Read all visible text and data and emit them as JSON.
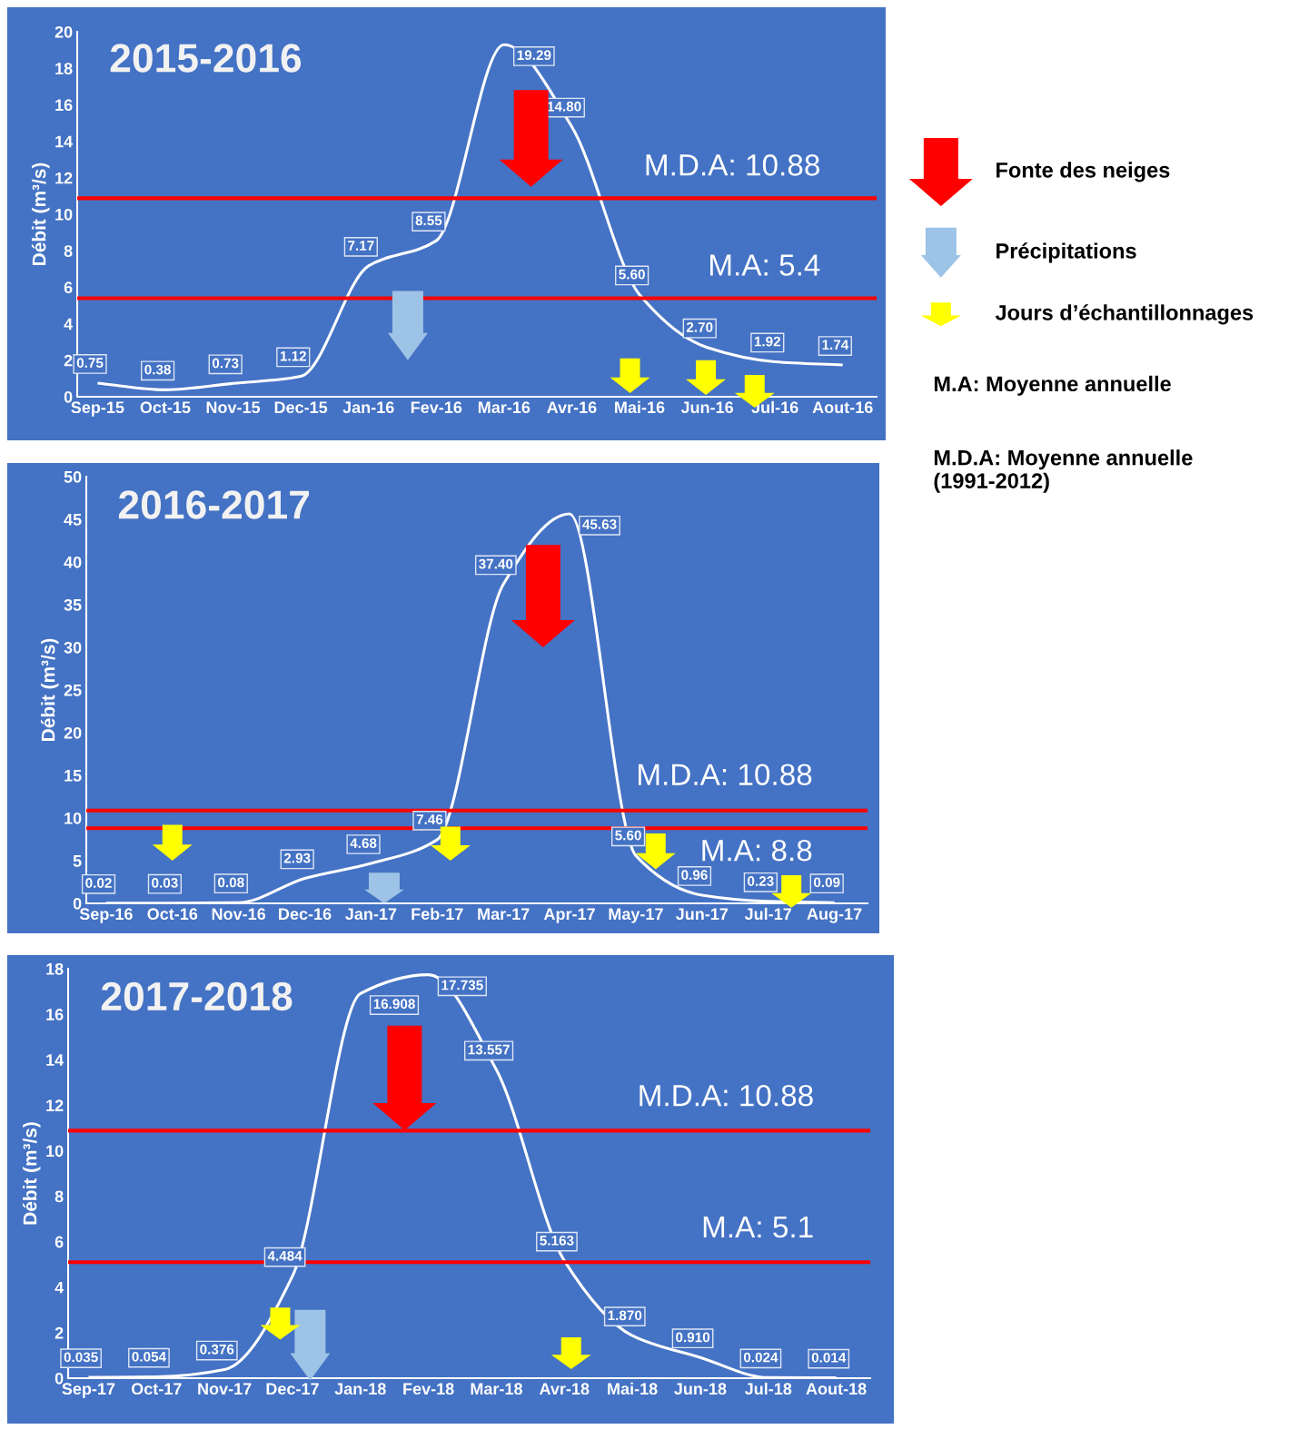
{
  "chart_data": [
    {
      "type": "line",
      "title": "2015-2016",
      "ylabel": "Débit (m³/s)",
      "categories": [
        "Sep-15",
        "Oct-15",
        "Nov-15",
        "Dec-15",
        "Jan-16",
        "Fev-16",
        "Mar-16",
        "Avr-16",
        "Mai-16",
        "Jun-16",
        "Jul-16",
        "Aout-16"
      ],
      "series": [
        {
          "color": "#ffffff",
          "values": [
            0.75,
            0.38,
            0.73,
            1.12,
            7.17,
            8.55,
            19.29,
            14.8,
            5.6,
            2.7,
            1.92,
            1.74
          ],
          "value_labels": [
            "0.75",
            "0.38",
            "0.73",
            "1.12",
            "7.17",
            "8.55",
            "19.29",
            "14.80",
            "5.60",
            "2.70",
            "1.92",
            "1.74"
          ]
        }
      ],
      "ylim": [
        0,
        20
      ],
      "yticks": [
        0,
        2,
        4,
        6,
        8,
        10,
        12,
        14,
        16,
        18,
        20
      ],
      "grid": false,
      "legend": false,
      "ref_lines": [
        {
          "axis": "y",
          "value": 10.88,
          "label": "M.D.A: 10.88",
          "color": "#ff0000"
        },
        {
          "axis": "y",
          "value": 5.4,
          "label": "M.A: 5.4",
          "color": "#ff0000"
        }
      ]
    },
    {
      "type": "line",
      "title": "2016-2017",
      "ylabel": "Débit (m³/s)",
      "categories": [
        "Sep-16",
        "Oct-16",
        "Nov-16",
        "Dec-16",
        "Jan-17",
        "Feb-17",
        "Mar-17",
        "Apr-17",
        "May-17",
        "Jun-17",
        "Jul-17",
        "Aug-17"
      ],
      "series": [
        {
          "color": "#ffffff",
          "values": [
            0.02,
            0.03,
            0.08,
            2.93,
            4.68,
            7.46,
            37.4,
            45.63,
            5.6,
            0.96,
            0.23,
            0.09
          ],
          "value_labels": [
            "0.02",
            "0.03",
            "0.08",
            "2.93",
            "4.68",
            "7.46",
            "37.40",
            "45.63",
            "5.60",
            "0.96",
            "0.23",
            "0.09"
          ]
        }
      ],
      "ylim": [
        0,
        50
      ],
      "yticks": [
        0,
        5,
        10,
        15,
        20,
        25,
        30,
        35,
        40,
        45,
        50
      ],
      "grid": false,
      "legend": false,
      "ref_lines": [
        {
          "axis": "y",
          "value": 10.88,
          "label": "M.D.A: 10.88",
          "color": "#ff0000"
        },
        {
          "axis": "y",
          "value": 8.8,
          "label": "M.A: 8.8",
          "color": "#ff0000"
        }
      ]
    },
    {
      "type": "line",
      "title": "2017-2018",
      "ylabel": "Débit (m³/s)",
      "categories": [
        "Sep-17",
        "Oct-17",
        "Nov-17",
        "Dec-17",
        "Jan-18",
        "Fev-18",
        "Mar-18",
        "Avr-18",
        "Mai-18",
        "Jun-18",
        "Jul-18",
        "Aout-18"
      ],
      "series": [
        {
          "color": "#ffffff",
          "values": [
            0.035,
            0.054,
            0.376,
            4.484,
            16.908,
            17.735,
            13.557,
            5.163,
            1.87,
            0.91,
            0.024,
            0.014
          ],
          "value_labels": [
            "0.035",
            "0.054",
            "0.376",
            "4.484",
            "16.908",
            "17.735",
            "13.557",
            "5.163",
            "1.870",
            "0.910",
            "0.024",
            "0.014"
          ]
        }
      ],
      "ylim": [
        0,
        18
      ],
      "yticks": [
        0,
        2,
        4,
        6,
        8,
        10,
        12,
        14,
        16,
        18
      ],
      "grid": false,
      "legend": false,
      "ref_lines": [
        {
          "axis": "y",
          "value": 10.88,
          "label": "M.D.A: 10.88",
          "color": "#ff0000"
        },
        {
          "axis": "y",
          "value": 5.1,
          "label": "M.A: 5.1",
          "color": "#ff0000"
        }
      ]
    },
    {
      "type": "other",
      "annotations": [
        "Fonte des neiges",
        "Précipitations",
        "Jours d’échantillonnages",
        "M.A: Moyenne annuelle",
        "M.D.A: Moyenne annuelle (1991-2012)"
      ]
    }
  ]
}
